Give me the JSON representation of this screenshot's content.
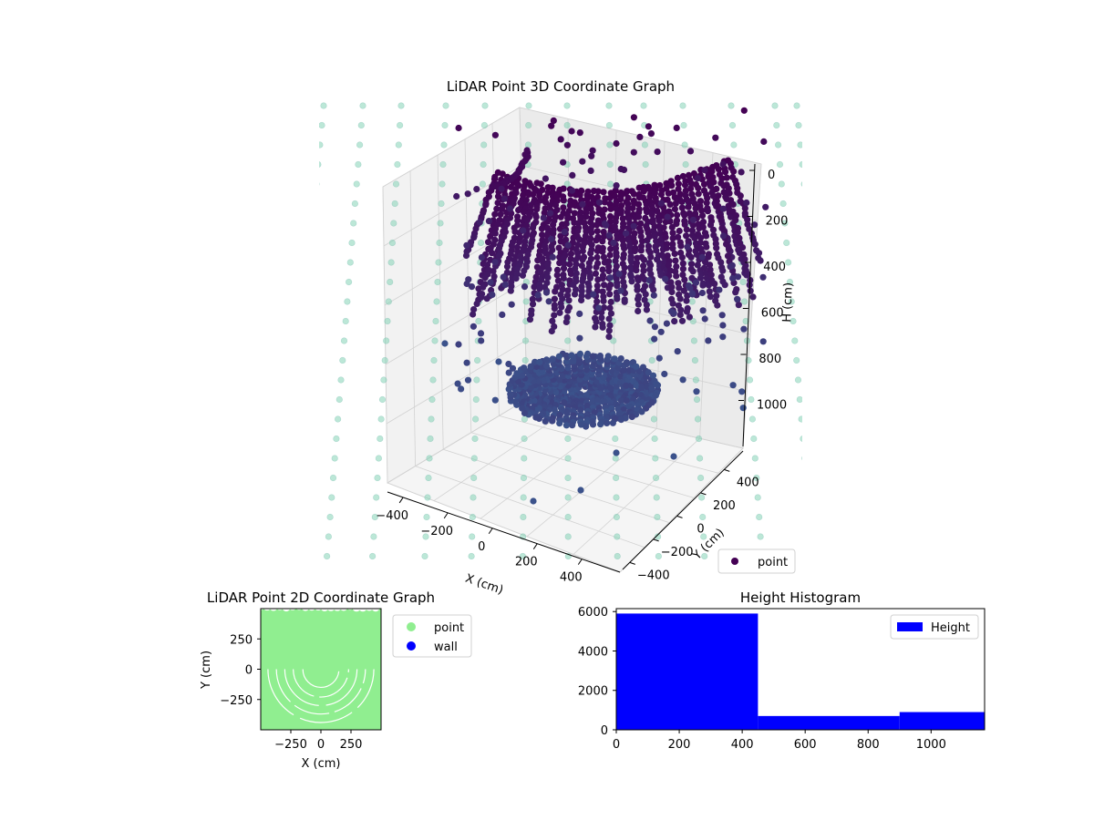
{
  "chart_data": [
    {
      "type": "scatter",
      "projection": "3d",
      "title": "LiDAR Point 3D Coordinate Graph",
      "xlabel": "X (cm)",
      "ylabel": "Y (cm)",
      "zlabel": "H (cm)",
      "x_ticks": [
        "−400",
        "−200",
        "0",
        "200",
        "400"
      ],
      "y_ticks": [
        "−400",
        "−200",
        "0",
        "200",
        "400"
      ],
      "z_ticks": [
        "0",
        "200",
        "400",
        "600",
        "800",
        "1000"
      ],
      "z_axis": "inverted",
      "legend": {
        "placement": "lower right",
        "entries": [
          "point"
        ]
      },
      "series": [
        {
          "name": "point",
          "color": "#440154",
          "colormap": "viridis",
          "points_sample": [
            [
              0,
              0,
              50
            ],
            [
              -300,
              200,
              20
            ],
            [
              300,
              -200,
              40
            ],
            [
              0,
              0,
              900
            ],
            [
              -100,
              50,
              950
            ],
            [
              150,
              -100,
              1000
            ]
          ]
        },
        {
          "name": "",
          "role": "wall",
          "color": "#7ad0b0",
          "alpha": 0.5
        }
      ],
      "grid": true
    },
    {
      "type": "scatter",
      "title": "LiDAR Point 2D Coordinate Graph",
      "xlabel": "X (cm)",
      "ylabel": "Y (cm)",
      "xlim": [
        -500,
        500
      ],
      "ylim": [
        -500,
        500
      ],
      "x_ticks": [
        "−250",
        "0",
        "250"
      ],
      "y_ticks": [
        "250",
        "0",
        "−250"
      ],
      "legend": {
        "placement": "outside right",
        "entries": [
          "point",
          "wall"
        ]
      },
      "series": [
        {
          "name": "point",
          "color": "#90ee90"
        },
        {
          "name": "wall",
          "color": "#0000ff"
        }
      ]
    },
    {
      "type": "bar",
      "subtype": "histogram",
      "title": "Height Histogram",
      "xlim": [
        0,
        1170
      ],
      "ylim": [
        0,
        6150
      ],
      "x_ticks": [
        "0",
        "200",
        "400",
        "600",
        "800",
        "1000"
      ],
      "y_ticks": [
        "0",
        "2000",
        "4000",
        "6000"
      ],
      "bins": [
        [
          0,
          450,
          5900
        ],
        [
          450,
          900,
          700
        ],
        [
          900,
          1170,
          900
        ]
      ],
      "legend": {
        "placement": "upper right",
        "entries": [
          "Height"
        ]
      },
      "series": [
        {
          "name": "Height",
          "color": "#0000ff"
        }
      ]
    }
  ]
}
